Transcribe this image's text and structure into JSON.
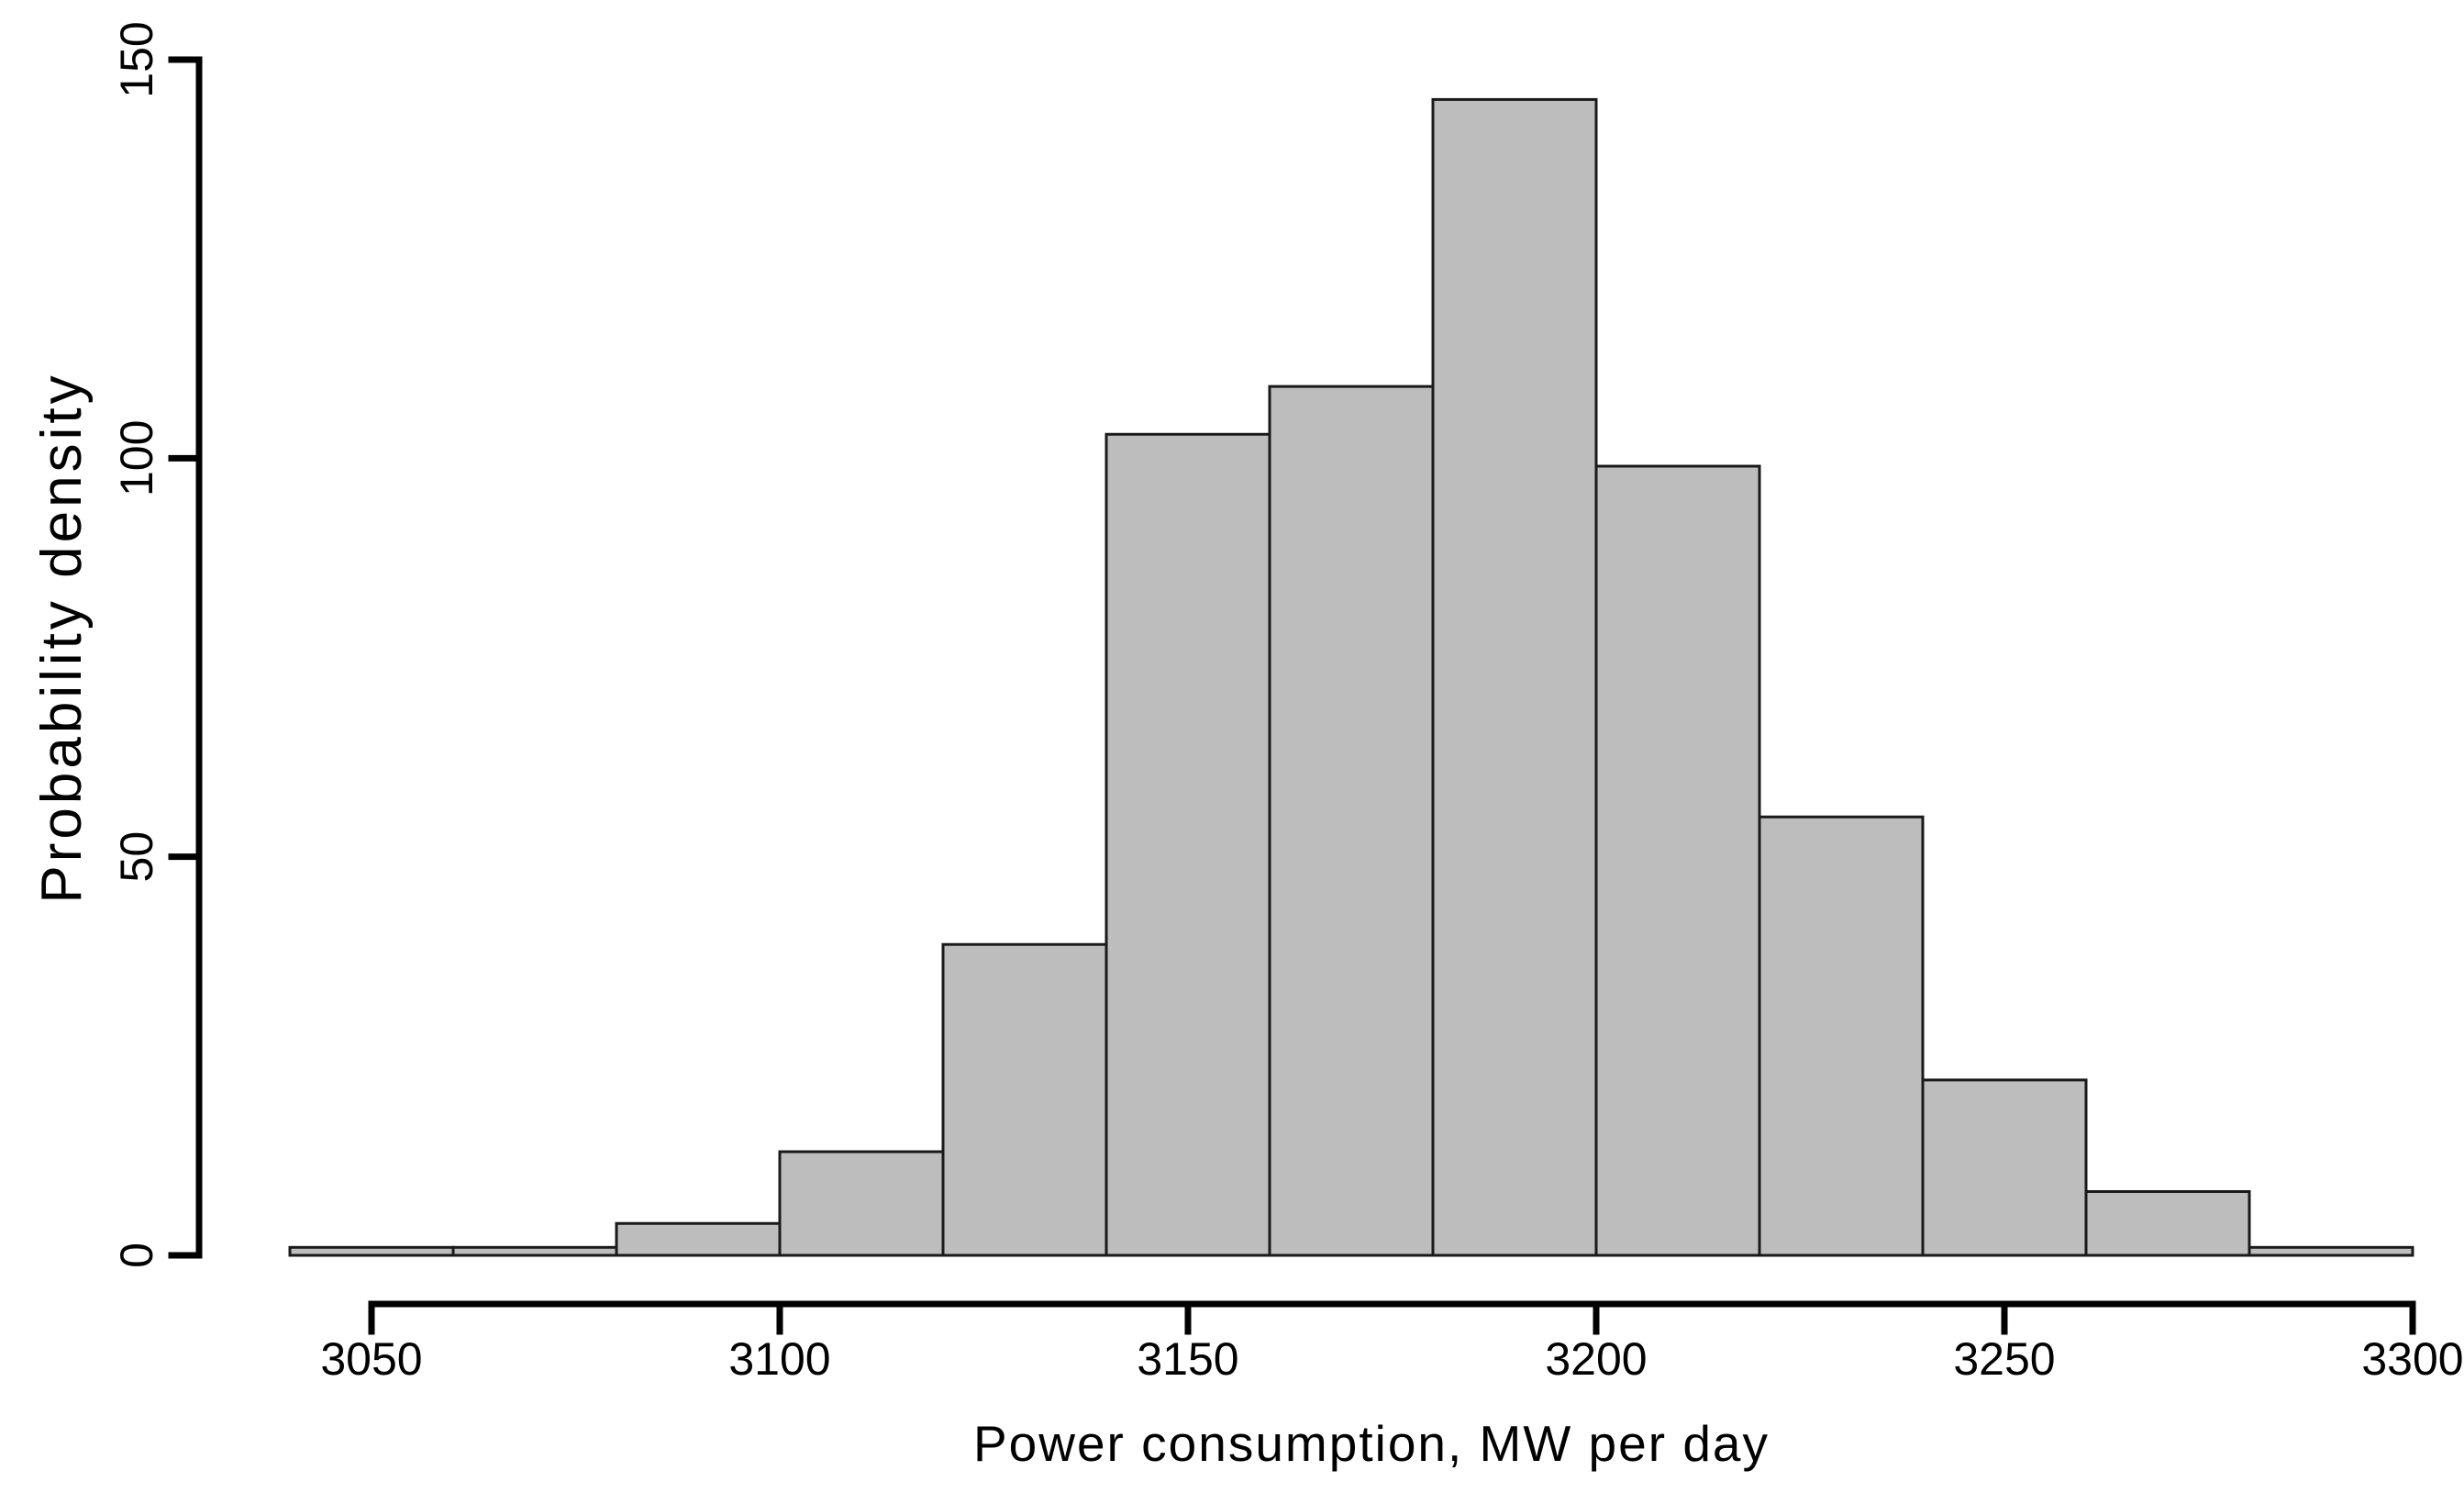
{
  "chart_data": {
    "type": "histogram",
    "title": "",
    "xlabel": "Power consumption, MW per day",
    "ylabel": "Probability density",
    "bins": {
      "start": 3040,
      "width": 20,
      "count": 13
    },
    "bin_edges": [
      3040,
      3060,
      3080,
      3100,
      3120,
      3140,
      3160,
      3180,
      3200,
      3220,
      3240,
      3260,
      3280,
      3300
    ],
    "counts": [
      1,
      1,
      4,
      13,
      39,
      103,
      109,
      145,
      99,
      55,
      22,
      8,
      1
    ],
    "x_ticks": [
      3050,
      3100,
      3150,
      3200,
      3250,
      3300
    ],
    "y_ticks": [
      0,
      50,
      100,
      150
    ],
    "xlim": [
      3040,
      3300
    ],
    "ylim": [
      0,
      150
    ],
    "grid": false,
    "legend": null,
    "colors": {
      "bar_fill": "#bdbdbd",
      "bar_border": "#1a1a1a",
      "axis": "#000000",
      "text": "#000000",
      "background": "#ffffff"
    }
  }
}
